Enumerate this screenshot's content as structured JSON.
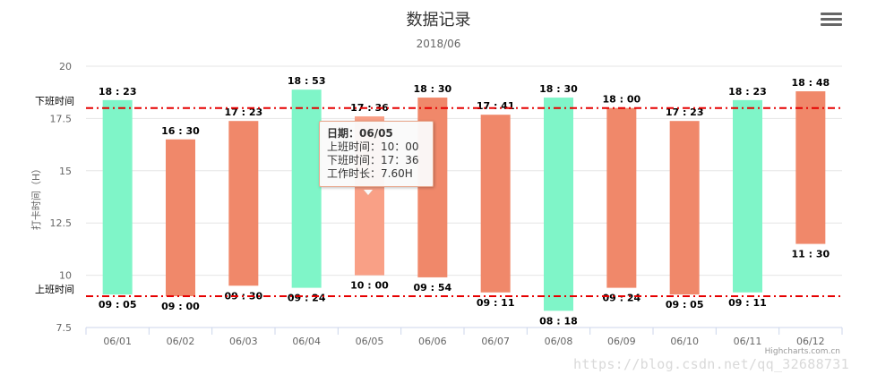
{
  "chart_data": {
    "type": "bar",
    "title": "数据记录",
    "subtitle": "2018/06",
    "ylabel": "打卡时间（H）",
    "ylim": [
      7.5,
      20
    ],
    "yticks": [
      "7.5",
      "10",
      "12.5",
      "15",
      "17.5",
      "20"
    ],
    "yticks_values": [
      7.5,
      10,
      12.5,
      15,
      17.5,
      20
    ],
    "grid": true,
    "categories": [
      "06/01",
      "06/02",
      "06/03",
      "06/04",
      "06/05",
      "06/06",
      "06/07",
      "06/08",
      "06/09",
      "06/10",
      "06/11",
      "06/12"
    ],
    "bars": [
      {
        "low": 9.08,
        "high": 18.38,
        "start_label": "09 : 05",
        "end_label": "18 : 23",
        "color": "#7ff5c8"
      },
      {
        "low": 9.0,
        "high": 16.5,
        "start_label": "09 : 00",
        "end_label": "16 : 30",
        "color": "#f0886a"
      },
      {
        "low": 9.5,
        "high": 17.38,
        "start_label": "09 : 30",
        "end_label": "17 : 23",
        "color": "#f0886a"
      },
      {
        "low": 9.4,
        "high": 18.88,
        "start_label": "09 : 24",
        "end_label": "18 : 53",
        "color": "#7ff5c8"
      },
      {
        "low": 10.0,
        "high": 17.6,
        "start_label": "10 : 00",
        "end_label": "17 : 36",
        "color": "#f9a086"
      },
      {
        "low": 9.9,
        "high": 18.5,
        "start_label": "09 : 54",
        "end_label": "18 : 30",
        "color": "#f0886a"
      },
      {
        "low": 9.18,
        "high": 17.68,
        "start_label": "09 : 11",
        "end_label": "17 : 41",
        "color": "#f0886a"
      },
      {
        "low": 8.3,
        "high": 18.5,
        "start_label": "08 : 18",
        "end_label": "18 : 30",
        "color": "#7ff5c8"
      },
      {
        "low": 9.4,
        "high": 18.0,
        "start_label": "09 : 24",
        "end_label": "18 : 00",
        "color": "#f0886a"
      },
      {
        "low": 9.08,
        "high": 17.38,
        "start_label": "09 : 05",
        "end_label": "17 : 23",
        "color": "#f0886a"
      },
      {
        "low": 9.18,
        "high": 18.38,
        "start_label": "09 : 11",
        "end_label": "18 : 23",
        "color": "#7ff5c8"
      },
      {
        "low": 11.5,
        "high": 18.8,
        "start_label": "11 : 30",
        "end_label": "18 : 48",
        "color": "#f0886a"
      }
    ],
    "plot_lines": [
      {
        "value": 18,
        "label": "下班时间",
        "color": "#e60000"
      },
      {
        "value": 9,
        "label": "上班时间",
        "color": "#e60000"
      }
    ],
    "tooltip": {
      "header": "日期：06/05",
      "line1": "上班时间：10：00",
      "line2": "下班时间：17：36",
      "line3": "工作时长：7.60H"
    }
  },
  "credits": "Highcharts.com.cn",
  "watermark": "https://blog.csdn.net/qq_32688731"
}
